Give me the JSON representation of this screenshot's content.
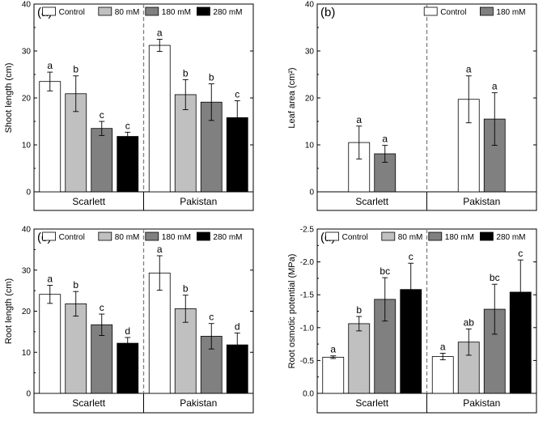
{
  "colors": {
    "Control": "#ffffff",
    "80 mM": "#c0c0c0",
    "180 mM": "#808080",
    "280 mM": "#000000",
    "axis": "#000000",
    "divider": "#808080"
  },
  "chart_data": [
    {
      "id": "a",
      "type": "bar",
      "panel_label": "(a)",
      "ylabel": "Shoot length (cm)",
      "ylim": [
        0,
        40
      ],
      "yticks": [
        0,
        10,
        20,
        30,
        40
      ],
      "ytick_labels": [
        "0",
        "10",
        "20",
        "30",
        "40"
      ],
      "inverted": false,
      "categories": [
        "Scarlett",
        "Pakistan"
      ],
      "legend": [
        "Control",
        "80 mM",
        "180 mM",
        "280 mM"
      ],
      "legend_position": "top-right",
      "series": [
        {
          "name": "Control",
          "values": [
            23.5,
            31.2
          ],
          "errors": [
            2.0,
            1.3
          ],
          "letters": [
            "a",
            "a"
          ]
        },
        {
          "name": "80 mM",
          "values": [
            20.9,
            20.7
          ],
          "errors": [
            3.8,
            3.2
          ],
          "letters": [
            "b",
            "b"
          ]
        },
        {
          "name": "180 mM",
          "values": [
            13.5,
            19.1
          ],
          "errors": [
            1.5,
            3.9
          ],
          "letters": [
            "c",
            "b"
          ]
        },
        {
          "name": "280 mM",
          "values": [
            11.8,
            15.8
          ],
          "errors": [
            0.9,
            3.6
          ],
          "letters": [
            "c",
            "c"
          ]
        }
      ]
    },
    {
      "id": "b",
      "type": "bar",
      "panel_label": "(b)",
      "ylabel": "Leaf area (cm²)",
      "ylim": [
        0,
        40
      ],
      "yticks": [
        0,
        10,
        20,
        30,
        40
      ],
      "ytick_labels": [
        "0",
        "10",
        "20",
        "30",
        "40"
      ],
      "inverted": false,
      "categories": [
        "Scarlett",
        "Pakistan"
      ],
      "legend": [
        "Control",
        "180 mM"
      ],
      "legend_position": "top-right",
      "series": [
        {
          "name": "Control",
          "values": [
            10.5,
            19.7
          ],
          "errors": [
            3.5,
            5.0
          ],
          "letters": [
            "a",
            "a"
          ]
        },
        {
          "name": "180 mM",
          "values": [
            8.1,
            15.5
          ],
          "errors": [
            1.8,
            5.6
          ],
          "letters": [
            "a",
            "a"
          ]
        }
      ]
    },
    {
      "id": "c",
      "type": "bar",
      "panel_label": "(c)",
      "ylabel": "Root length (cm)",
      "ylim": [
        0,
        40
      ],
      "yticks": [
        0,
        10,
        20,
        30,
        40
      ],
      "ytick_labels": [
        "0",
        "10",
        "20",
        "30",
        "40"
      ],
      "inverted": false,
      "categories": [
        "Scarlett",
        "Pakistan"
      ],
      "legend": [
        "Control",
        "80 mM",
        "180 mM",
        "280 mM"
      ],
      "legend_position": "top-right",
      "series": [
        {
          "name": "Control",
          "values": [
            24.1,
            29.3
          ],
          "errors": [
            2.2,
            4.2
          ],
          "letters": [
            "a",
            "a"
          ]
        },
        {
          "name": "80 mM",
          "values": [
            21.8,
            20.6
          ],
          "errors": [
            3.0,
            3.3
          ],
          "letters": [
            "b",
            "b"
          ]
        },
        {
          "name": "180 mM",
          "values": [
            16.7,
            13.9
          ],
          "errors": [
            2.6,
            3.1
          ],
          "letters": [
            "c",
            "c"
          ]
        },
        {
          "name": "280 mM",
          "values": [
            12.2,
            11.8
          ],
          "errors": [
            1.4,
            2.9
          ],
          "letters": [
            "d",
            "d"
          ]
        }
      ]
    },
    {
      "id": "d",
      "type": "bar",
      "panel_label": "(d)",
      "ylabel": "Root osmotic potential (MPa)",
      "ylim": [
        0,
        -2.5
      ],
      "yticks": [
        0,
        -0.5,
        -1.0,
        -1.5,
        -2.0,
        -2.5
      ],
      "ytick_labels": [
        "0.0",
        "-0.5",
        "-1.0",
        "-1.5",
        "-2.0",
        "-2.5"
      ],
      "inverted": true,
      "categories": [
        "Scarlett",
        "Pakistan"
      ],
      "legend": [
        "Control",
        "80 mM",
        "180 mM",
        "280 mM"
      ],
      "legend_position": "top-right",
      "series": [
        {
          "name": "Control",
          "values": [
            -0.55,
            -0.56
          ],
          "errors": [
            0.02,
            0.05
          ],
          "letters": [
            "a",
            "a"
          ]
        },
        {
          "name": "80 mM",
          "values": [
            -1.06,
            -0.78
          ],
          "errors": [
            0.11,
            0.2
          ],
          "letters": [
            "b",
            "ab"
          ]
        },
        {
          "name": "180 mM",
          "values": [
            -1.43,
            -1.28
          ],
          "errors": [
            0.33,
            0.38
          ],
          "letters": [
            "bc",
            "bc"
          ]
        },
        {
          "name": "280 mM",
          "values": [
            -1.58,
            -1.54
          ],
          "errors": [
            0.4,
            0.49
          ],
          "letters": [
            "c",
            "c"
          ]
        }
      ]
    }
  ]
}
